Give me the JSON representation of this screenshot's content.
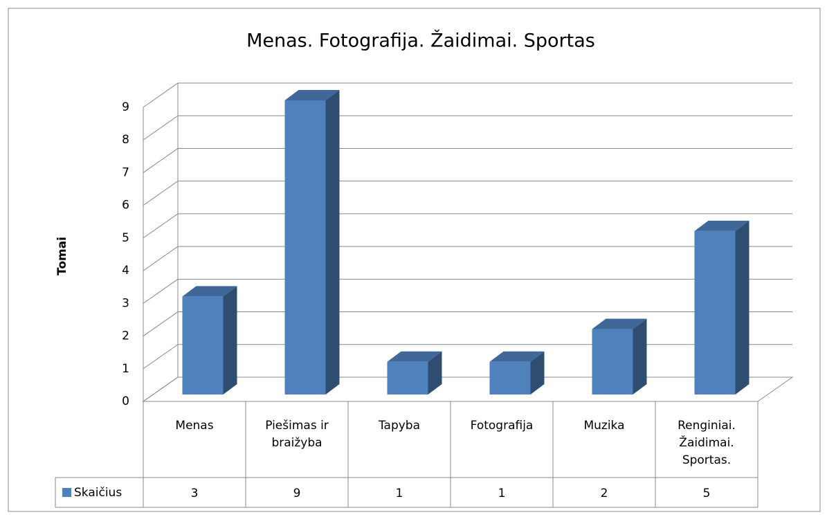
{
  "chart_data": {
    "type": "bar3d",
    "title": "Menas. Fotografija. Žaidimai. Sportas",
    "y_label": "Tomai",
    "categories": [
      "Menas",
      "Piešimas ir braižyba",
      "Tapyba",
      "Fotografija",
      "Muzika",
      "Renginiai. Žaidimai. Sportas."
    ],
    "series": [
      {
        "name": "Skaičius",
        "color": "#4f81bd",
        "values": [
          3,
          9,
          1,
          1,
          2,
          5
        ]
      }
    ],
    "ylim": [
      0,
      9
    ],
    "yticks": [
      0,
      1,
      2,
      3,
      4,
      5,
      6,
      7,
      8,
      9
    ],
    "grid": true,
    "data_table": true
  }
}
